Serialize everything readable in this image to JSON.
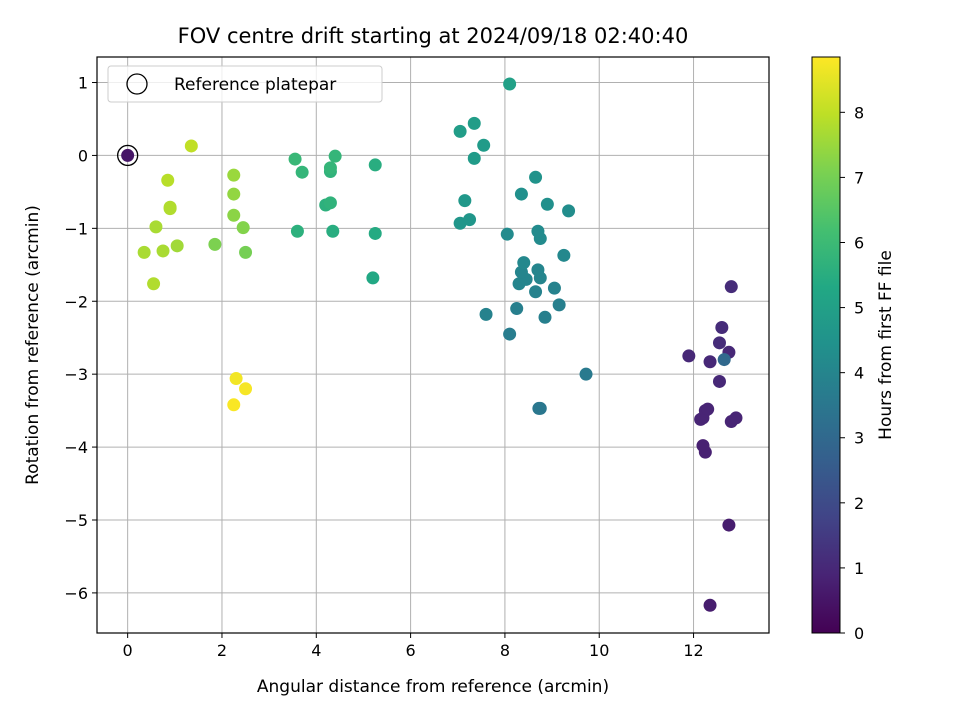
{
  "chart_data": {
    "type": "scatter",
    "title": "FOV centre drift starting at 2024/09/18 02:40:40",
    "xlabel": "Angular distance from reference (arcmin)",
    "ylabel": "Rotation from reference (arcmin)",
    "xlim": [
      -0.65,
      13.6
    ],
    "ylim": [
      -6.55,
      1.35
    ],
    "xticks": [
      0,
      2,
      4,
      6,
      8,
      10,
      12
    ],
    "yticks": [
      -6,
      -5,
      -4,
      -3,
      -2,
      -1,
      0,
      1
    ],
    "grid": true,
    "legend": {
      "position": "top-left",
      "entries": [
        "Reference platepar"
      ]
    },
    "reference_point": {
      "x": 0,
      "y": 0
    },
    "colorbar": {
      "label": "Hours from first FF file",
      "range": [
        0,
        8.85
      ],
      "ticks": [
        0,
        1,
        2,
        3,
        4,
        5,
        6,
        7,
        8
      ],
      "colormap": "viridis"
    },
    "points": [
      {
        "x": 0.0,
        "y": 0.0,
        "c": 0.5
      },
      {
        "x": 12.35,
        "y": -6.17,
        "c": 0.7
      },
      {
        "x": 12.75,
        "y": -5.07,
        "c": 0.7
      },
      {
        "x": 12.25,
        "y": -4.07,
        "c": 0.8
      },
      {
        "x": 12.2,
        "y": -3.98,
        "c": 0.8
      },
      {
        "x": 12.8,
        "y": -3.65,
        "c": 0.9
      },
      {
        "x": 12.9,
        "y": -3.6,
        "c": 0.9
      },
      {
        "x": 12.15,
        "y": -3.62,
        "c": 0.9
      },
      {
        "x": 12.2,
        "y": -3.6,
        "c": 0.9
      },
      {
        "x": 12.25,
        "y": -3.5,
        "c": 0.9
      },
      {
        "x": 12.3,
        "y": -3.48,
        "c": 0.9
      },
      {
        "x": 12.55,
        "y": -3.1,
        "c": 1.0
      },
      {
        "x": 11.9,
        "y": -2.75,
        "c": 1.0
      },
      {
        "x": 12.35,
        "y": -2.83,
        "c": 1.0
      },
      {
        "x": 12.75,
        "y": -2.7,
        "c": 1.0
      },
      {
        "x": 12.55,
        "y": -2.57,
        "c": 1.1
      },
      {
        "x": 12.6,
        "y": -2.36,
        "c": 1.1
      },
      {
        "x": 12.8,
        "y": -1.8,
        "c": 1.1
      },
      {
        "x": 12.65,
        "y": -2.8,
        "c": 3.0
      },
      {
        "x": 8.75,
        "y": -3.47,
        "c": 3.5
      },
      {
        "x": 8.72,
        "y": -3.47,
        "c": 3.5
      },
      {
        "x": 9.72,
        "y": -3.0,
        "c": 3.6
      },
      {
        "x": 8.1,
        "y": -2.45,
        "c": 3.7
      },
      {
        "x": 7.6,
        "y": -2.18,
        "c": 3.9
      },
      {
        "x": 8.85,
        "y": -2.22,
        "c": 3.8
      },
      {
        "x": 8.25,
        "y": -2.1,
        "c": 3.8
      },
      {
        "x": 9.15,
        "y": -2.05,
        "c": 3.8
      },
      {
        "x": 8.65,
        "y": -1.87,
        "c": 3.9
      },
      {
        "x": 9.05,
        "y": -1.82,
        "c": 3.9
      },
      {
        "x": 8.3,
        "y": -1.76,
        "c": 4.0
      },
      {
        "x": 8.45,
        "y": -1.7,
        "c": 4.0
      },
      {
        "x": 8.75,
        "y": -1.68,
        "c": 4.0
      },
      {
        "x": 8.35,
        "y": -1.6,
        "c": 4.0
      },
      {
        "x": 8.7,
        "y": -1.57,
        "c": 4.0
      },
      {
        "x": 8.4,
        "y": -1.47,
        "c": 4.1
      },
      {
        "x": 9.25,
        "y": -1.37,
        "c": 4.1
      },
      {
        "x": 8.05,
        "y": -1.08,
        "c": 4.2
      },
      {
        "x": 8.75,
        "y": -1.14,
        "c": 4.2
      },
      {
        "x": 8.7,
        "y": -1.04,
        "c": 4.2
      },
      {
        "x": 9.35,
        "y": -0.76,
        "c": 4.3
      },
      {
        "x": 8.9,
        "y": -0.67,
        "c": 4.4
      },
      {
        "x": 8.35,
        "y": -0.53,
        "c": 4.4
      },
      {
        "x": 8.65,
        "y": -0.3,
        "c": 4.5
      },
      {
        "x": 7.05,
        "y": -0.93,
        "c": 4.6
      },
      {
        "x": 7.25,
        "y": -0.88,
        "c": 4.6
      },
      {
        "x": 7.15,
        "y": -0.62,
        "c": 4.7
      },
      {
        "x": 7.35,
        "y": -0.04,
        "c": 4.8
      },
      {
        "x": 7.55,
        "y": 0.14,
        "c": 4.8
      },
      {
        "x": 7.05,
        "y": 0.33,
        "c": 4.9
      },
      {
        "x": 7.35,
        "y": 0.44,
        "c": 4.9
      },
      {
        "x": 8.1,
        "y": 0.98,
        "c": 5.0
      },
      {
        "x": 5.2,
        "y": -1.68,
        "c": 5.3
      },
      {
        "x": 5.25,
        "y": -1.07,
        "c": 5.4
      },
      {
        "x": 4.35,
        "y": -1.04,
        "c": 5.5
      },
      {
        "x": 3.6,
        "y": -1.04,
        "c": 5.6
      },
      {
        "x": 4.2,
        "y": -0.68,
        "c": 5.6
      },
      {
        "x": 4.3,
        "y": -0.65,
        "c": 5.7
      },
      {
        "x": 4.3,
        "y": -0.22,
        "c": 5.7
      },
      {
        "x": 4.3,
        "y": -0.17,
        "c": 5.8
      },
      {
        "x": 3.7,
        "y": -0.23,
        "c": 5.8
      },
      {
        "x": 3.55,
        "y": -0.05,
        "c": 5.9
      },
      {
        "x": 4.4,
        "y": -0.01,
        "c": 5.8
      },
      {
        "x": 5.25,
        "y": -0.13,
        "c": 5.5
      },
      {
        "x": 2.5,
        "y": -1.33,
        "c": 7.0
      },
      {
        "x": 1.85,
        "y": -1.22,
        "c": 7.1
      },
      {
        "x": 2.45,
        "y": -0.99,
        "c": 7.2
      },
      {
        "x": 2.25,
        "y": -0.82,
        "c": 7.3
      },
      {
        "x": 2.25,
        "y": -0.53,
        "c": 7.4
      },
      {
        "x": 2.25,
        "y": -0.27,
        "c": 7.5
      },
      {
        "x": 1.05,
        "y": -1.24,
        "c": 7.6
      },
      {
        "x": 0.75,
        "y": -1.31,
        "c": 7.7
      },
      {
        "x": 0.35,
        "y": -1.33,
        "c": 7.7
      },
      {
        "x": 0.55,
        "y": -1.76,
        "c": 7.8
      },
      {
        "x": 0.6,
        "y": -0.98,
        "c": 7.7
      },
      {
        "x": 0.9,
        "y": -0.73,
        "c": 7.8
      },
      {
        "x": 0.9,
        "y": -0.71,
        "c": 7.8
      },
      {
        "x": 0.85,
        "y": -0.34,
        "c": 7.9
      },
      {
        "x": 1.35,
        "y": 0.13,
        "c": 8.0
      },
      {
        "x": 2.3,
        "y": -3.06,
        "c": 8.7
      },
      {
        "x": 2.5,
        "y": -3.2,
        "c": 8.75
      },
      {
        "x": 2.25,
        "y": -3.42,
        "c": 8.8
      }
    ]
  }
}
